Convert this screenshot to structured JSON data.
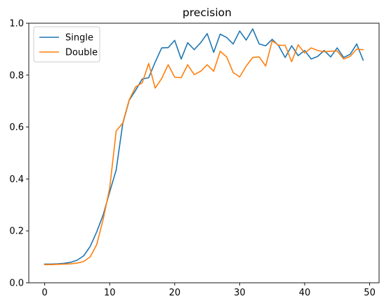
{
  "chart_data": {
    "type": "line",
    "title": "precision",
    "xlabel": "",
    "ylabel": "",
    "xlim": [
      -2.45,
      51.45
    ],
    "ylim": [
      0.0,
      1.0
    ],
    "xticks": [
      0,
      10,
      20,
      30,
      40,
      50
    ],
    "yticks": [
      0.0,
      0.2,
      0.4,
      0.6,
      0.8,
      1.0
    ],
    "xtick_labels": [
      "0",
      "10",
      "20",
      "30",
      "40",
      "50"
    ],
    "ytick_labels": [
      "0.0",
      "0.2",
      "0.4",
      "0.6",
      "0.8",
      "1.0"
    ],
    "grid": false,
    "legend_position": "top-left",
    "x": [
      0,
      1,
      2,
      3,
      4,
      5,
      6,
      7,
      8,
      9,
      10,
      11,
      12,
      13,
      14,
      15,
      16,
      17,
      18,
      19,
      20,
      21,
      22,
      23,
      24,
      25,
      26,
      27,
      28,
      29,
      30,
      31,
      32,
      33,
      34,
      35,
      36,
      37,
      38,
      39,
      40,
      41,
      42,
      43,
      44,
      45,
      46,
      47,
      48,
      49
    ],
    "series": [
      {
        "name": "Single",
        "color": "#1f77b4",
        "values": [
          0.072,
          0.072,
          0.073,
          0.075,
          0.079,
          0.087,
          0.104,
          0.14,
          0.196,
          0.262,
          0.35,
          0.435,
          0.612,
          0.703,
          0.742,
          0.785,
          0.79,
          0.85,
          0.905,
          0.906,
          0.934,
          0.862,
          0.925,
          0.898,
          0.925,
          0.96,
          0.888,
          0.958,
          0.945,
          0.92,
          0.97,
          0.935,
          0.978,
          0.92,
          0.913,
          0.938,
          0.913,
          0.868,
          0.913,
          0.875,
          0.895,
          0.862,
          0.872,
          0.895,
          0.87,
          0.905,
          0.868,
          0.88,
          0.92,
          0.858
        ]
      },
      {
        "name": "Double",
        "color": "#ff7f0e",
        "values": [
          0.07,
          0.07,
          0.071,
          0.072,
          0.073,
          0.076,
          0.082,
          0.1,
          0.147,
          0.245,
          0.365,
          0.585,
          0.615,
          0.705,
          0.755,
          0.77,
          0.845,
          0.75,
          0.787,
          0.84,
          0.792,
          0.79,
          0.84,
          0.802,
          0.815,
          0.84,
          0.815,
          0.892,
          0.87,
          0.81,
          0.793,
          0.835,
          0.868,
          0.87,
          0.835,
          0.932,
          0.915,
          0.915,
          0.852,
          0.917,
          0.885,
          0.905,
          0.895,
          0.89,
          0.892,
          0.893,
          0.862,
          0.872,
          0.9,
          0.898
        ]
      }
    ]
  }
}
